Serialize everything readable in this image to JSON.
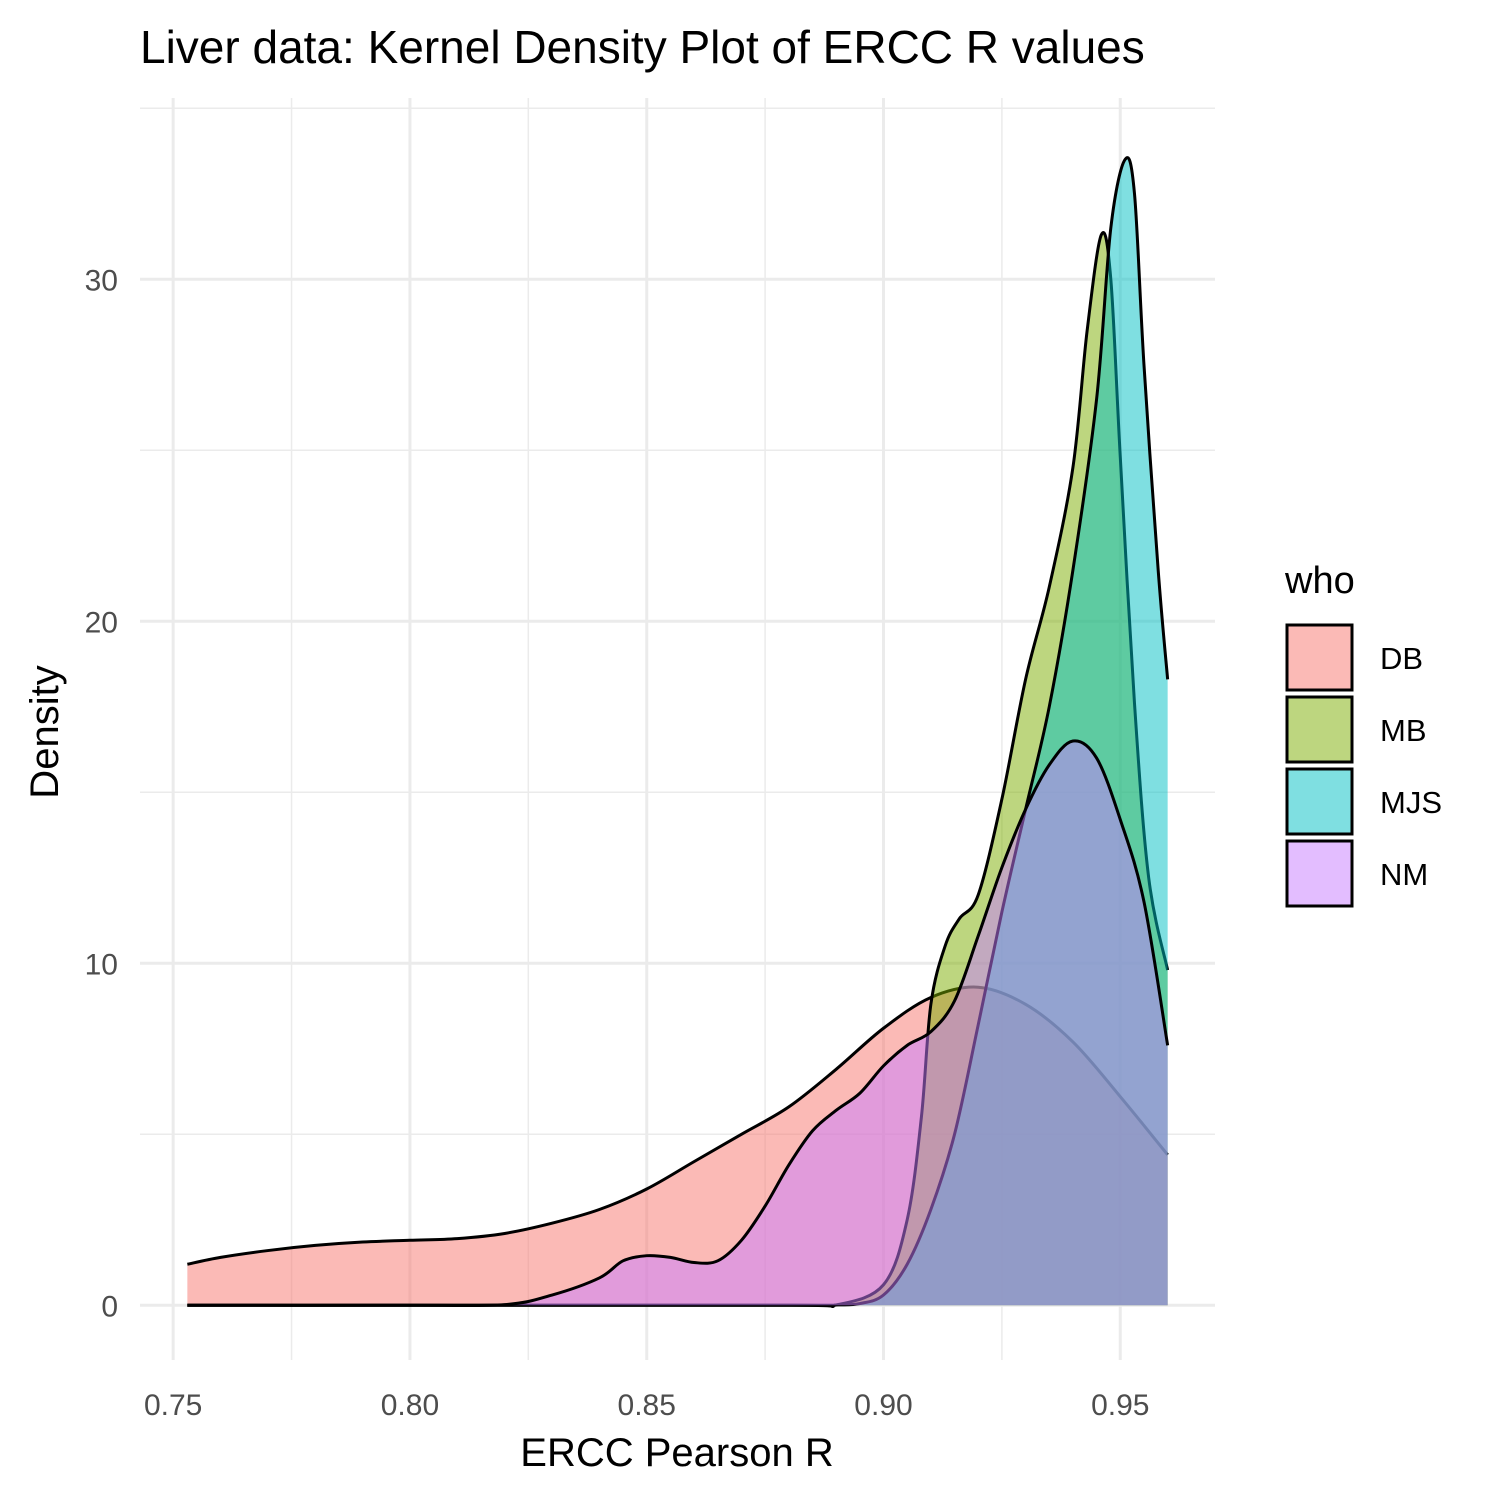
{
  "chart_data": {
    "type": "area",
    "title": "Liver data: Kernel Density Plot of ERCC R values",
    "xlabel": "ERCC Pearson R",
    "ylabel": "Density",
    "xlim": [
      0.743,
      0.97
    ],
    "ylim": [
      -1.6,
      35.3
    ],
    "x_ticks": [
      0.75,
      0.8,
      0.85,
      0.9,
      0.95
    ],
    "x_tick_labels": [
      "0.75",
      "0.80",
      "0.85",
      "0.90",
      "0.95"
    ],
    "y_ticks": [
      0,
      10,
      20,
      30
    ],
    "y_tick_labels": [
      "0",
      "10",
      "20",
      "30"
    ],
    "grid": true,
    "fill_alpha": 0.5,
    "legend": {
      "title": "who",
      "position": "right",
      "entries": [
        "DB",
        "MB",
        "MJS",
        "NM"
      ]
    },
    "series": [
      {
        "name": "DB",
        "color": "#F8766D",
        "x": [
          0.753,
          0.76,
          0.77,
          0.78,
          0.79,
          0.8,
          0.81,
          0.82,
          0.83,
          0.84,
          0.85,
          0.86,
          0.87,
          0.88,
          0.89,
          0.9,
          0.91,
          0.92,
          0.93,
          0.94,
          0.95,
          0.96
        ],
        "y": [
          1.2,
          1.4,
          1.6,
          1.75,
          1.85,
          1.9,
          1.95,
          2.1,
          2.4,
          2.8,
          3.4,
          4.2,
          5.0,
          5.8,
          6.9,
          8.1,
          9.0,
          9.3,
          8.8,
          7.7,
          6.1,
          4.4
        ]
      },
      {
        "name": "MB",
        "color": "#7CAE00",
        "x": [
          0.753,
          0.8,
          0.88,
          0.89,
          0.9,
          0.905,
          0.908,
          0.91,
          0.913,
          0.916,
          0.92,
          0.925,
          0.93,
          0.935,
          0.94,
          0.943,
          0.946,
          0.948,
          0.95,
          0.953,
          0.956,
          0.96
        ],
        "y": [
          0,
          0,
          0,
          0.01,
          0.6,
          2.5,
          5.5,
          8.8,
          10.5,
          11.3,
          12.0,
          14.8,
          18.3,
          21.0,
          24.5,
          28.5,
          31.3,
          30.0,
          24.8,
          17.6,
          12.5,
          9.8
        ]
      },
      {
        "name": "MJS",
        "color": "#00BFC4",
        "x": [
          0.753,
          0.8,
          0.88,
          0.89,
          0.895,
          0.9,
          0.905,
          0.91,
          0.915,
          0.92,
          0.925,
          0.93,
          0.935,
          0.94,
          0.945,
          0.948,
          0.951,
          0.953,
          0.955,
          0.958,
          0.96
        ],
        "y": [
          0,
          0,
          0,
          0.01,
          0.05,
          0.3,
          1.2,
          2.8,
          5.0,
          8.2,
          11.5,
          14.5,
          17.5,
          21.5,
          26.5,
          31.5,
          33.5,
          32.5,
          27.5,
          21.5,
          18.3
        ]
      },
      {
        "name": "NM",
        "color": "#C77CFF",
        "x": [
          0.753,
          0.8,
          0.82,
          0.83,
          0.84,
          0.845,
          0.85,
          0.855,
          0.86,
          0.865,
          0.87,
          0.875,
          0.88,
          0.885,
          0.89,
          0.895,
          0.9,
          0.905,
          0.91,
          0.915,
          0.92,
          0.925,
          0.93,
          0.935,
          0.94,
          0.945,
          0.95,
          0.955,
          0.96
        ],
        "y": [
          0,
          0,
          0.02,
          0.3,
          0.8,
          1.3,
          1.45,
          1.4,
          1.25,
          1.3,
          1.9,
          2.9,
          4.1,
          5.1,
          5.7,
          6.2,
          7.0,
          7.6,
          8.0,
          8.9,
          10.8,
          12.8,
          14.5,
          15.8,
          16.5,
          16.0,
          14.2,
          11.8,
          7.6
        ]
      }
    ]
  }
}
